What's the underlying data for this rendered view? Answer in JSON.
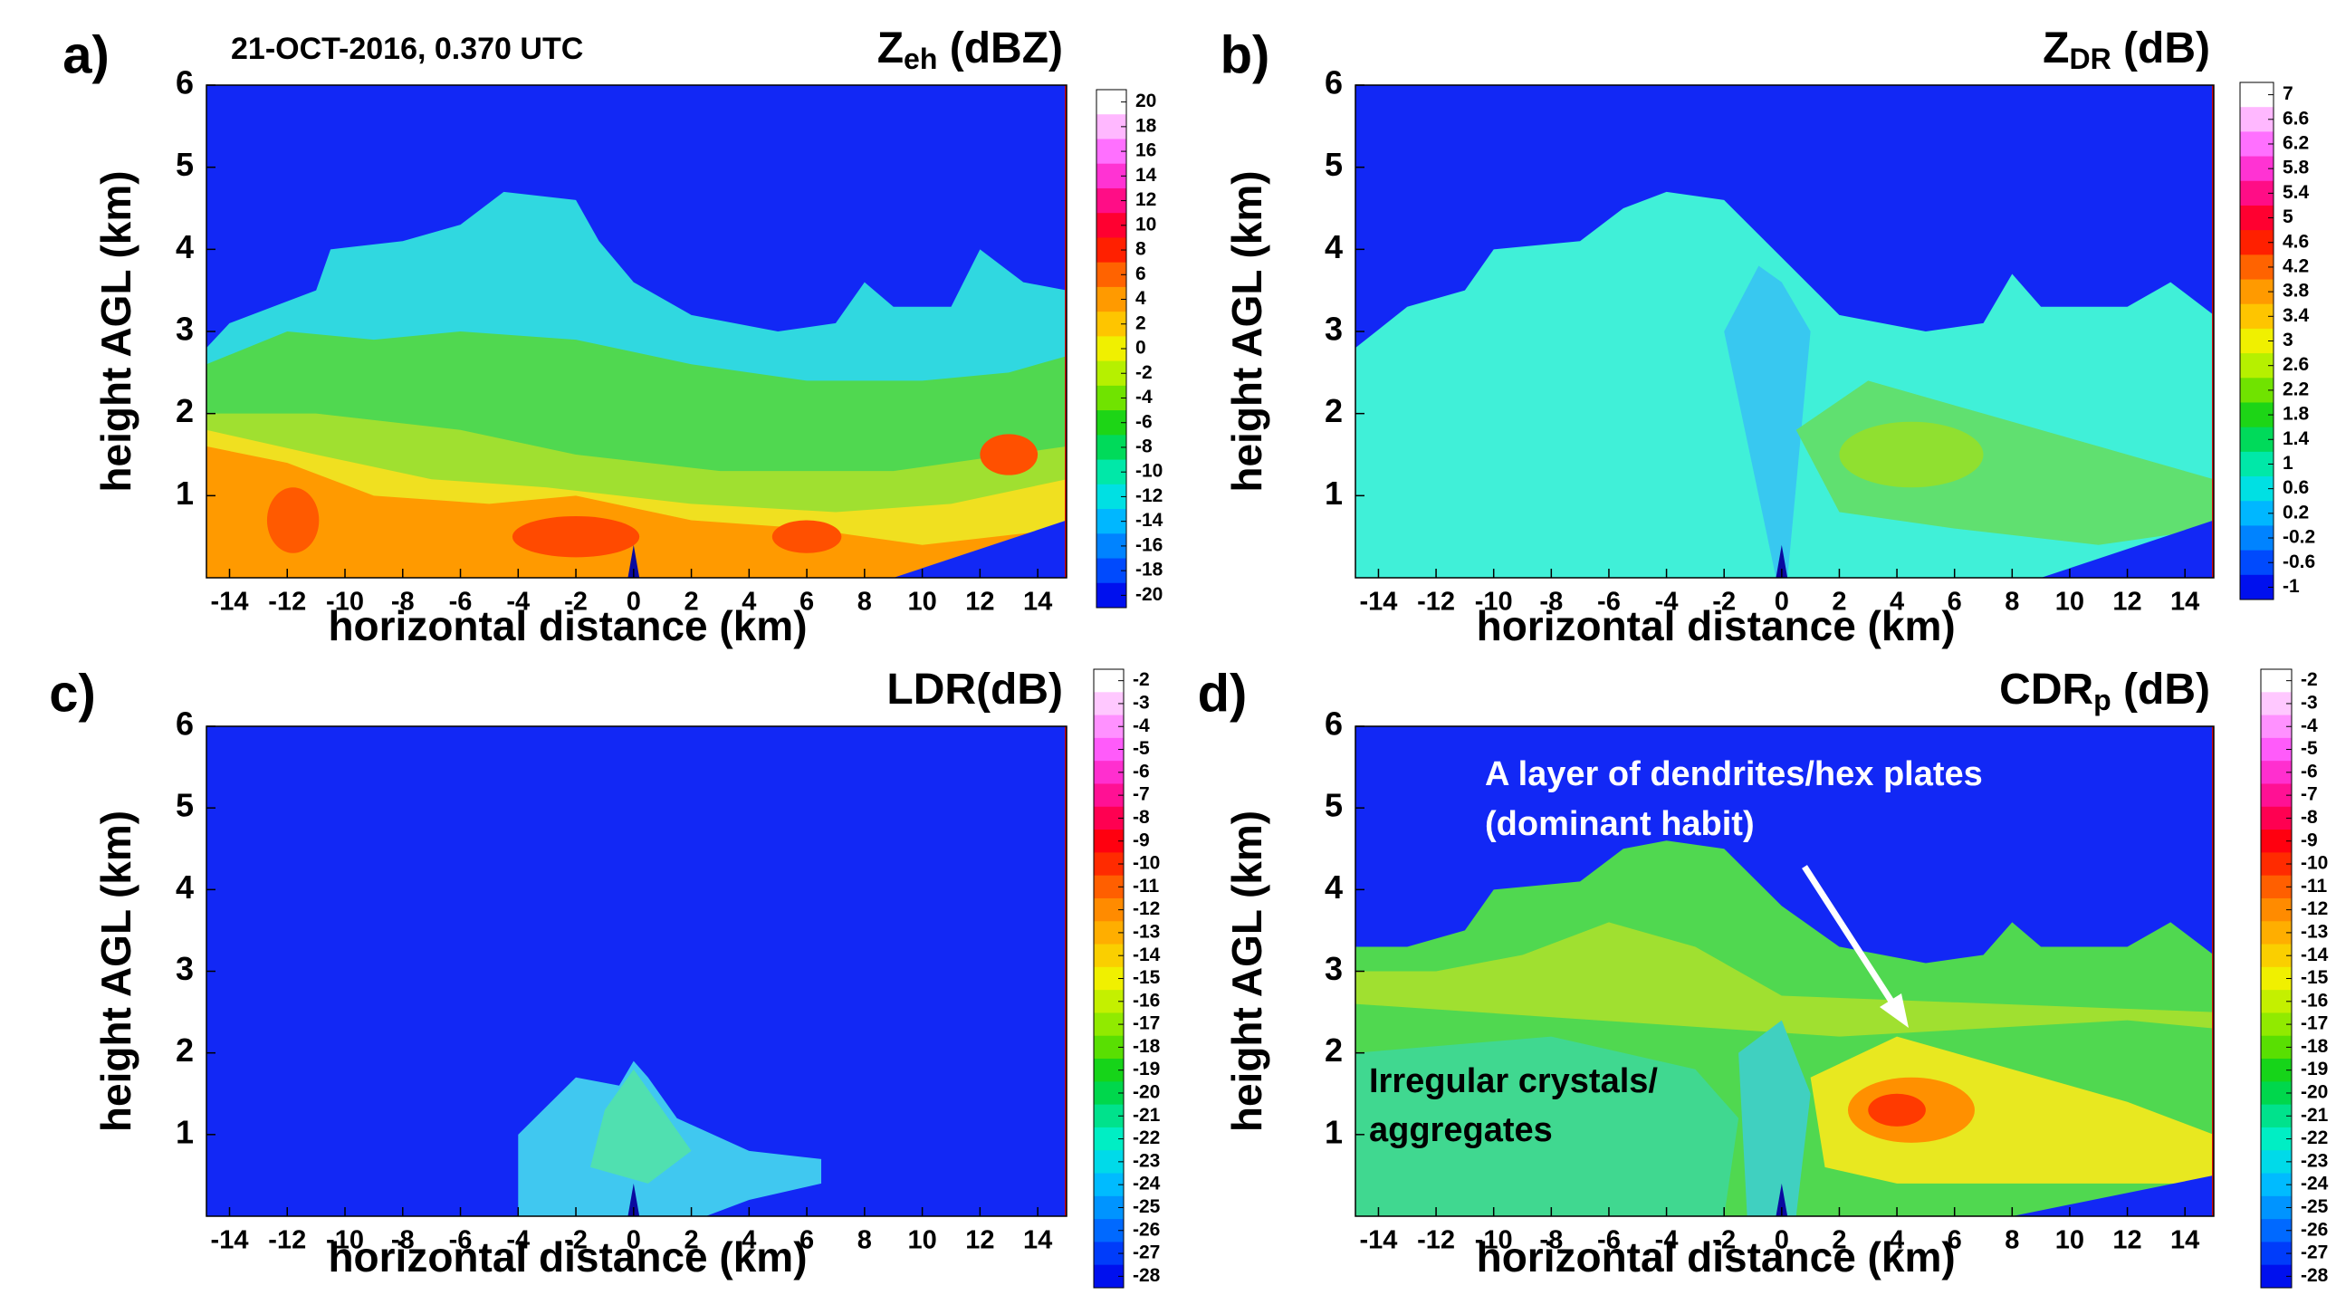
{
  "chart_data": [
    {
      "type": "contour",
      "panel": "a)",
      "title": "Z",
      "title_sub": "eh",
      "title_unit": " (dBZ)",
      "subtitle": "21-OCT-2016, 0.370 UTC",
      "xlabel": "horizontal distance (km)",
      "ylabel": "height AGL (km)",
      "xlim": [
        -14.8,
        15
      ],
      "ylim": [
        0,
        6
      ],
      "xticks": [
        -14,
        -12,
        -10,
        -8,
        -6,
        -4,
        -2,
        0,
        2,
        4,
        6,
        8,
        10,
        12,
        14
      ],
      "yticks": [
        1,
        2,
        3,
        4,
        5,
        6
      ],
      "colorbar_ticks": [
        20,
        18,
        16,
        14,
        12,
        10,
        8,
        6,
        4,
        2,
        0,
        -2,
        -4,
        -6,
        -8,
        -10,
        -12,
        -14,
        -16,
        -18,
        -20
      ]
    },
    {
      "type": "contour",
      "panel": "b)",
      "title": "Z",
      "title_sub": "DR",
      "title_unit": " (dB)",
      "xlabel": "horizontal distance (km)",
      "ylabel": "height AGL (km)",
      "xlim": [
        -14.8,
        15
      ],
      "ylim": [
        0,
        6
      ],
      "xticks": [
        -14,
        -12,
        -10,
        -8,
        -6,
        -4,
        -2,
        0,
        2,
        4,
        6,
        8,
        10,
        12,
        14
      ],
      "yticks": [
        1,
        2,
        3,
        4,
        5,
        6
      ],
      "colorbar_ticks": [
        7,
        6.6,
        6.2,
        5.8,
        5.4,
        5,
        4.6,
        4.2,
        3.8,
        3.4,
        3,
        2.6,
        2.2,
        1.8,
        1.4,
        1,
        0.6,
        0.2,
        -0.2,
        -0.6,
        -1
      ]
    },
    {
      "type": "contour",
      "panel": "c)",
      "title": "LDR(dB)",
      "xlabel": "horizontal distance (km)",
      "ylabel": "height AGL (km)",
      "xlim": [
        -14.8,
        15
      ],
      "ylim": [
        0,
        6
      ],
      "xticks": [
        -14,
        -12,
        -10,
        -8,
        -6,
        -4,
        -2,
        0,
        2,
        4,
        6,
        8,
        10,
        12,
        14
      ],
      "yticks": [
        1,
        2,
        3,
        4,
        5,
        6
      ],
      "colorbar_ticks": [
        -2,
        -3,
        -4,
        -5,
        -6,
        -7,
        -8,
        -9,
        -10,
        -11,
        -12,
        -13,
        -14,
        -15,
        -16,
        -17,
        -18,
        -19,
        -20,
        -21,
        -22,
        -23,
        -24,
        -25,
        -26,
        -27,
        -28
      ]
    },
    {
      "type": "contour",
      "panel": "d)",
      "title": "CDR",
      "title_sub": "p",
      "title_unit": " (dB)",
      "xlabel": "horizontal distance (km)",
      "ylabel": "height AGL (km)",
      "xlim": [
        -14.8,
        15
      ],
      "ylim": [
        0,
        6
      ],
      "xticks": [
        -14,
        -12,
        -10,
        -8,
        -6,
        -4,
        -2,
        0,
        2,
        4,
        6,
        8,
        10,
        12,
        14
      ],
      "yticks": [
        1,
        2,
        3,
        4,
        5,
        6
      ],
      "colorbar_ticks": [
        -2,
        -3,
        -4,
        -5,
        -6,
        -7,
        -8,
        -9,
        -10,
        -11,
        -12,
        -13,
        -14,
        -15,
        -16,
        -17,
        -18,
        -19,
        -20,
        -21,
        -22,
        -23,
        -24,
        -25,
        -26,
        -27,
        -28
      ],
      "annotations": [
        "A layer of dendrites/hex plates",
        "(dominant habit)",
        "Irregular crystals/",
        "aggregates"
      ]
    }
  ],
  "colormap": [
    "#ffffff",
    "#ffb0ff",
    "#ff60ff",
    "#ff20c0",
    "#ff0060",
    "#ff0000",
    "#ff5000",
    "#ff9000",
    "#ffc000",
    "#f0f000",
    "#b0f000",
    "#60e000",
    "#00d020",
    "#00e080",
    "#00f0d0",
    "#00c8ff",
    "#0090ff",
    "#0050ff",
    "#0010ee"
  ]
}
